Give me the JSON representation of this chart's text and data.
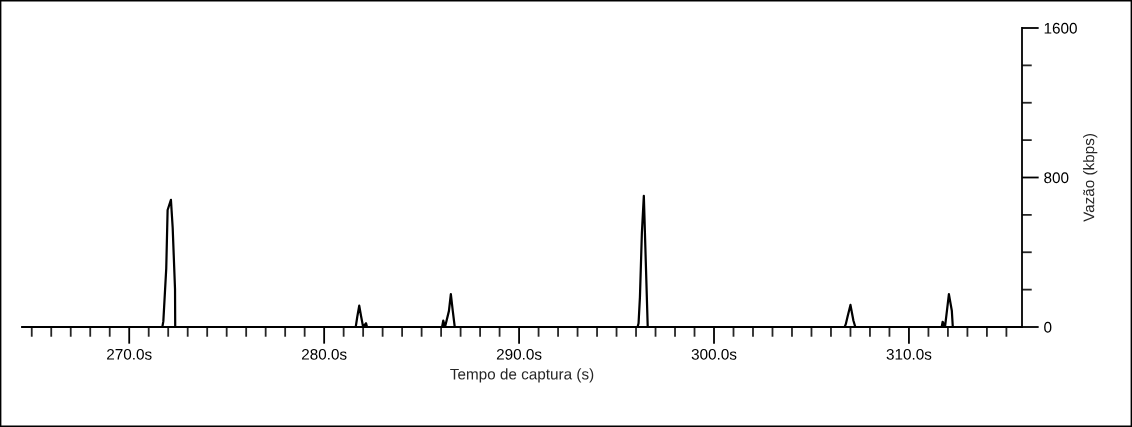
{
  "chart_data": {
    "type": "line",
    "xlabel": "Tempo de captura (s)",
    "ylabel": "Vazão (kbps)",
    "x": [
      264.5,
      271.7,
      271.75,
      271.9,
      271.97,
      272.14,
      272.23,
      272.35,
      272.36,
      281.62,
      281.7,
      281.8,
      281.9,
      282.0,
      282.15,
      282.2,
      282.25,
      286.05,
      286.11,
      286.2,
      286.4,
      286.5,
      286.6,
      286.7,
      286.8,
      296.08,
      296.13,
      296.2,
      296.3,
      296.4,
      296.5,
      296.6,
      296.7,
      306.7,
      306.76,
      306.85,
      307.0,
      307.15,
      307.25,
      311.68,
      311.73,
      311.85,
      311.95,
      312.05,
      312.2,
      312.25,
      315.8
    ],
    "values": [
      0,
      0,
      30,
      314,
      626,
      680,
      531,
      203,
      0,
      0,
      55,
      114,
      55,
      0,
      20,
      0,
      0,
      0,
      34,
      0,
      85,
      176,
      85,
      0,
      0,
      0,
      20,
      160,
      504,
      702,
      350,
      0,
      0,
      0,
      15,
      55,
      118,
      35,
      0,
      0,
      28,
      0,
      87,
      176,
      87,
      0,
      0
    ],
    "color": "#000000",
    "marker": "none",
    "line_style": "solid",
    "grid": false,
    "legend": false,
    "xlim": [
      264.5,
      315.8
    ],
    "xticks": [
      {
        "value": 265,
        "label": null
      },
      {
        "value": 266,
        "label": null
      },
      {
        "value": 267,
        "label": null
      },
      {
        "value": 268,
        "label": null
      },
      {
        "value": 269,
        "label": null
      },
      {
        "value": 270,
        "label": "270.0s"
      },
      {
        "value": 271,
        "label": null
      },
      {
        "value": 272,
        "label": null
      },
      {
        "value": 273,
        "label": null
      },
      {
        "value": 274,
        "label": null
      },
      {
        "value": 275,
        "label": null
      },
      {
        "value": 276,
        "label": null
      },
      {
        "value": 277,
        "label": null
      },
      {
        "value": 278,
        "label": null
      },
      {
        "value": 279,
        "label": null
      },
      {
        "value": 280,
        "label": "280.0s"
      },
      {
        "value": 281,
        "label": null
      },
      {
        "value": 282,
        "label": null
      },
      {
        "value": 283,
        "label": null
      },
      {
        "value": 284,
        "label": null
      },
      {
        "value": 285,
        "label": null
      },
      {
        "value": 286,
        "label": null
      },
      {
        "value": 287,
        "label": null
      },
      {
        "value": 288,
        "label": null
      },
      {
        "value": 289,
        "label": null
      },
      {
        "value": 290,
        "label": "290.0s"
      },
      {
        "value": 291,
        "label": null
      },
      {
        "value": 292,
        "label": null
      },
      {
        "value": 293,
        "label": null
      },
      {
        "value": 294,
        "label": null
      },
      {
        "value": 295,
        "label": null
      },
      {
        "value": 296,
        "label": null
      },
      {
        "value": 297,
        "label": null
      },
      {
        "value": 298,
        "label": null
      },
      {
        "value": 299,
        "label": null
      },
      {
        "value": 300,
        "label": "300.0s"
      },
      {
        "value": 301,
        "label": null
      },
      {
        "value": 302,
        "label": null
      },
      {
        "value": 303,
        "label": null
      },
      {
        "value": 304,
        "label": null
      },
      {
        "value": 305,
        "label": null
      },
      {
        "value": 306,
        "label": null
      },
      {
        "value": 307,
        "label": null
      },
      {
        "value": 308,
        "label": null
      },
      {
        "value": 309,
        "label": null
      },
      {
        "value": 310,
        "label": "310.0s"
      },
      {
        "value": 311,
        "label": null
      },
      {
        "value": 312,
        "label": null
      },
      {
        "value": 313,
        "label": null
      },
      {
        "value": 314,
        "label": null
      },
      {
        "value": 315,
        "label": null
      }
    ],
    "ylim": [
      0,
      1600
    ],
    "yticks": [
      0,
      {
        "value": 200,
        "label": null
      },
      {
        "value": 400,
        "label": null
      },
      {
        "value": 600,
        "label": null
      },
      800,
      {
        "value": 1000,
        "label": null
      },
      {
        "value": 1200,
        "label": null
      },
      {
        "value": 1400,
        "label": null
      },
      1600
    ]
  }
}
